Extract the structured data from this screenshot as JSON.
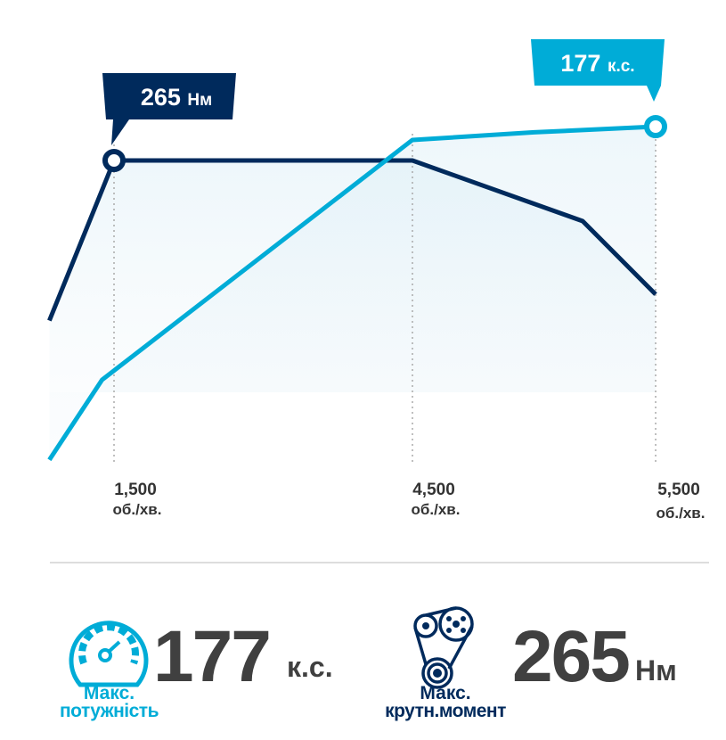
{
  "chart_data": {
    "type": "line",
    "x_ticks": [
      {
        "value": 1500,
        "label": "1,500",
        "unit": "об./хв."
      },
      {
        "value": 4500,
        "label": "4,500",
        "unit": "об./хв."
      },
      {
        "value": 5500,
        "label": "5,500",
        "unit": "об./хв."
      }
    ],
    "series": [
      {
        "key": "torque",
        "color": "#002a5c",
        "x": [
          850,
          1500,
          4500,
          5200,
          5500
        ],
        "values": [
          125,
          265,
          265,
          212,
          148
        ],
        "peak_label": "265",
        "peak_unit": "Нм",
        "peak_index": 1
      },
      {
        "key": "power",
        "color": "#00acd7",
        "x": [
          850,
          1380,
          4500,
          5000,
          5500
        ],
        "values": [
          2,
          44,
          170,
          174,
          177
        ],
        "peak_label": "177",
        "peak_unit": "к.с.",
        "peak_index": 4
      }
    ],
    "grid": false,
    "legend": "none"
  },
  "summary": {
    "power": {
      "value": "177",
      "unit": "к.с.",
      "caption1": "Макс.",
      "caption2": "потужність",
      "icon": "speedometer-icon",
      "color": "#00acd7"
    },
    "torque": {
      "value": "265",
      "unit": "Нм",
      "caption1": "Макс.",
      "caption2": "крутн.момент",
      "icon": "belt-pulley-icon",
      "color": "#002a5c"
    }
  }
}
